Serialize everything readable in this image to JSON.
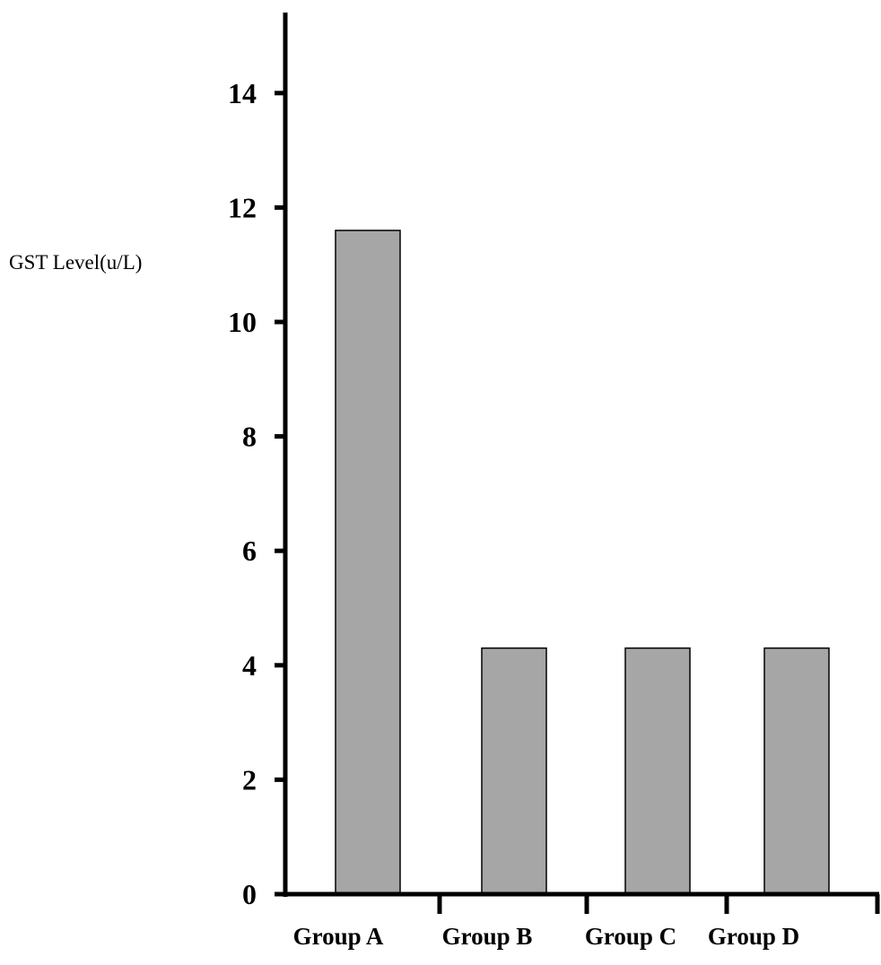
{
  "chart_data": {
    "type": "bar",
    "categories": [
      "Group A",
      "Group B",
      "Group C",
      "Group D"
    ],
    "values": [
      11.6,
      4.3,
      4.3,
      4.3
    ],
    "ylabel": "GST Level(u/L)",
    "xlabel": "",
    "title": "",
    "ylim": [
      0,
      15.5
    ],
    "yticks": [
      0,
      2,
      4,
      6,
      8,
      10,
      12,
      14
    ],
    "grid": false,
    "bar_color": "#a6a6a6",
    "bar_edge_color": "#000000"
  }
}
